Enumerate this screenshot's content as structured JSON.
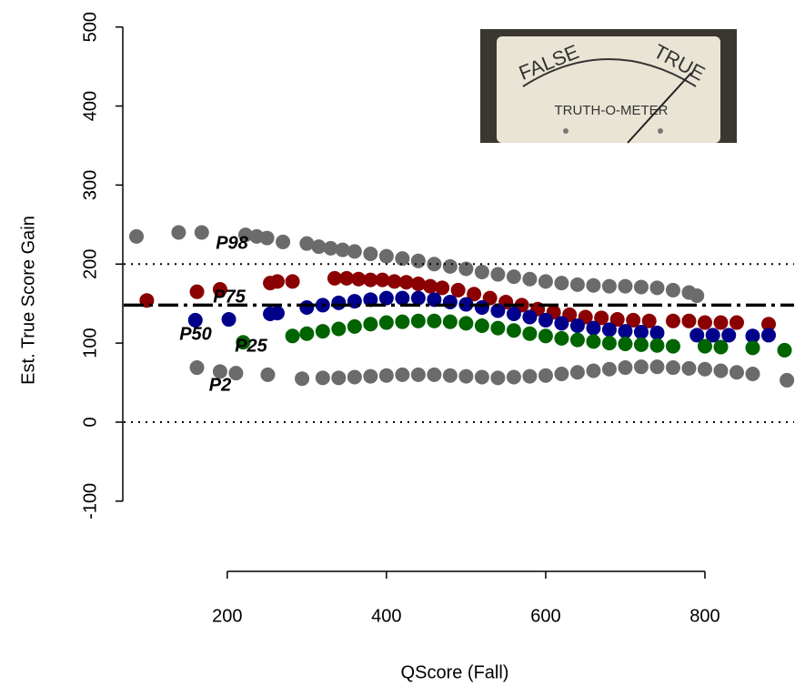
{
  "chart_data": {
    "type": "scatter",
    "xlabel": "QScore (Fall)",
    "ylabel": "Est. True Score Gain",
    "xlim": [
      70,
      912
    ],
    "ylim": [
      -190,
      510
    ],
    "xticks": [
      200,
      400,
      600,
      800
    ],
    "yticks": [
      -100,
      0,
      100,
      200,
      300,
      400,
      500
    ],
    "reference_lines": [
      {
        "y": 200,
        "style": "dotted"
      },
      {
        "y": 0,
        "style": "dotted"
      },
      {
        "y": 148,
        "style": "dashdot"
      }
    ],
    "series": [
      {
        "name": "P98",
        "color": "#6b6b6b",
        "x": [
          86,
          139,
          168,
          223,
          237,
          250,
          270,
          300,
          315,
          330,
          345,
          360,
          380,
          400,
          420,
          440,
          460,
          480,
          500,
          520,
          540,
          560,
          580,
          600,
          620,
          640,
          660,
          680,
          700,
          720,
          740,
          760,
          780,
          790
        ],
        "values": [
          235,
          240,
          240,
          237,
          235,
          233,
          228,
          226,
          222,
          220,
          218,
          216,
          213,
          210,
          207,
          204,
          200,
          197,
          194,
          190,
          187,
          184,
          181,
          178,
          176,
          174,
          173,
          172,
          172,
          171,
          170,
          167,
          164,
          160
        ]
      },
      {
        "name": "P75",
        "color": "#8b0000",
        "x": [
          99,
          162,
          191,
          254,
          263,
          282,
          335,
          350,
          365,
          380,
          395,
          410,
          425,
          440,
          455,
          470,
          490,
          510,
          530,
          550,
          570,
          590,
          610,
          630,
          650,
          670,
          690,
          710,
          730,
          760,
          780,
          800,
          820,
          840,
          880
        ],
        "values": [
          154,
          165,
          168,
          176,
          178,
          178,
          182,
          182,
          181,
          180,
          180,
          178,
          177,
          175,
          172,
          170,
          167,
          162,
          157,
          152,
          148,
          143,
          139,
          136,
          133,
          132,
          130,
          129,
          128,
          128,
          128,
          126,
          126,
          126,
          124
        ]
      },
      {
        "name": "P50",
        "color": "#00008b",
        "x": [
          160,
          202,
          254,
          263,
          300,
          320,
          340,
          360,
          380,
          400,
          420,
          440,
          460,
          480,
          500,
          520,
          540,
          560,
          580,
          600,
          620,
          640,
          660,
          680,
          700,
          720,
          740,
          790,
          810,
          830,
          860,
          880
        ],
        "values": [
          129,
          130,
          137,
          138,
          145,
          148,
          151,
          153,
          155,
          157,
          157,
          157,
          155,
          152,
          149,
          145,
          141,
          137,
          133,
          129,
          125,
          122,
          119,
          117,
          115,
          114,
          113,
          110,
          110,
          110,
          109,
          110
        ]
      },
      {
        "name": "P25",
        "color": "#006400",
        "x": [
          220,
          282,
          300,
          320,
          340,
          360,
          380,
          400,
          420,
          440,
          460,
          480,
          500,
          520,
          540,
          560,
          580,
          600,
          620,
          640,
          660,
          680,
          700,
          720,
          740,
          760,
          800,
          820,
          860,
          900
        ],
        "values": [
          101,
          109,
          112,
          115,
          118,
          121,
          124,
          126,
          127,
          128,
          128,
          127,
          125,
          122,
          119,
          116,
          112,
          109,
          106,
          104,
          102,
          100,
          99,
          98,
          97,
          96,
          96,
          95,
          94,
          91
        ]
      },
      {
        "name": "P2",
        "color": "#6b6b6b",
        "x": [
          162,
          191,
          211,
          251,
          294,
          320,
          340,
          360,
          380,
          400,
          420,
          440,
          460,
          480,
          500,
          520,
          540,
          560,
          580,
          600,
          620,
          640,
          660,
          680,
          700,
          720,
          740,
          760,
          780,
          800,
          820,
          840,
          860,
          903
        ],
        "values": [
          69,
          64,
          62,
          60,
          55,
          56,
          56,
          57,
          58,
          59,
          60,
          60,
          60,
          59,
          58,
          57,
          56,
          57,
          58,
          59,
          61,
          63,
          65,
          67,
          69,
          70,
          70,
          69,
          68,
          67,
          65,
          63,
          61,
          53
        ]
      }
    ],
    "inset": {
      "texts": [
        "FALSE",
        "TRUE",
        "TRUTH-O-METER"
      ]
    }
  }
}
